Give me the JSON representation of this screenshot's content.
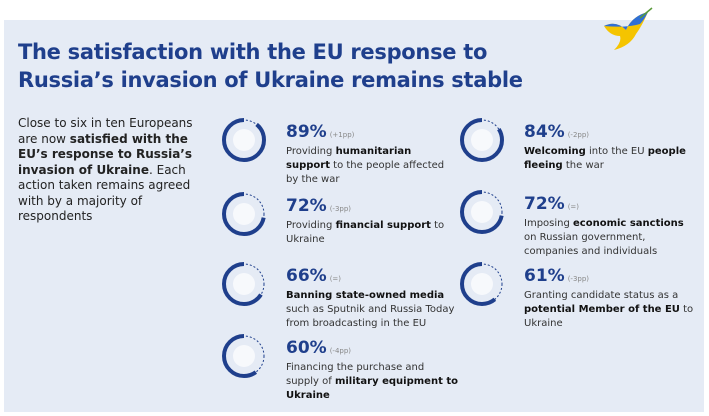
{
  "title": "The satisfaction with the EU response to Russia’s invasion of Ukraine remains stable",
  "intro": {
    "t1": "Close to six in ten Europeans are now ",
    "b1": "satisfied with the EU’s response to Russia’s invasion of Ukraine",
    "t2": ". Each action taken remains agreed with by a majority of respondents"
  },
  "colors": {
    "accent": "#1f3f8c",
    "background": "#e5ebf5"
  },
  "items": [
    {
      "pct": "89%",
      "value": 89,
      "change": "(+1pp)",
      "icon": "humanitarian-parachute-icon",
      "d1": "Providing ",
      "b1": "humanitarian support",
      "d2": " to the people affected by the war",
      "d3": "",
      "b2": ""
    },
    {
      "pct": "72%",
      "value": 72,
      "change": "(-3pp)",
      "icon": "piggy-bank-icon",
      "d1": "Providing ",
      "b1": "financial support",
      "d2": " to Ukraine",
      "d3": "",
      "b2": ""
    },
    {
      "pct": "66%",
      "value": 66,
      "change": "(=)",
      "icon": "banned-media-screen-icon",
      "d1": "",
      "b1": "Banning state-owned media",
      "d2": " such as Sputnik and Russia Today from broadcasting in the EU",
      "d3": "",
      "b2": ""
    },
    {
      "pct": "60%",
      "value": 60,
      "change": "(-4pp)",
      "icon": "tank-icon",
      "d1": "Financing the purchase and supply of ",
      "b1": "military equipment to Ukraine",
      "d2": "",
      "d3": "",
      "b2": ""
    },
    {
      "pct": "84%",
      "value": 84,
      "change": "(-2pp)",
      "icon": "refugees-icon",
      "d1": "",
      "b1": "Welcoming",
      "d2": " into the EU ",
      "b2": "people fleeing",
      "d3": " the war"
    },
    {
      "pct": "72%",
      "value": 72,
      "change": "(=)",
      "icon": "ruble-coin-sanctions-icon",
      "d1": "Imposing ",
      "b1": "economic sanctions",
      "d2": " on Russian government, companies and individuals",
      "b2": "",
      "d3": ""
    },
    {
      "pct": "61%",
      "value": 61,
      "change": "(-3pp)",
      "icon": "eu-flag-icon",
      "d1": "Granting candidate status as a ",
      "b1": "potential Member of the EU",
      "d2": " to Ukraine",
      "b2": "",
      "d3": ""
    }
  ]
}
